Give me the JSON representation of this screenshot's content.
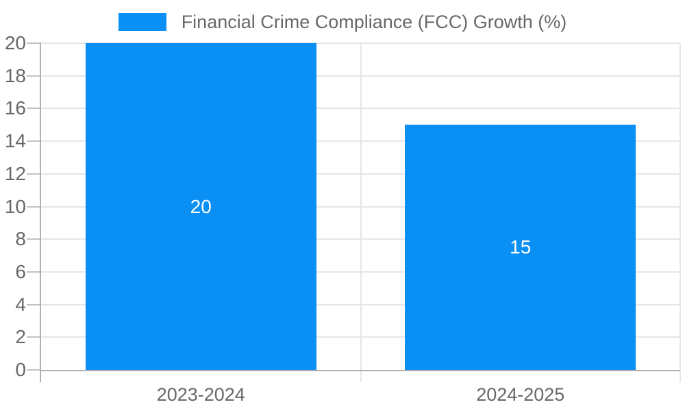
{
  "legend": {
    "label": "Financial Crime Compliance (FCC) Growth (%)"
  },
  "colors": {
    "bar": "#0a8ff5",
    "grid": "#e6e6e6",
    "axis": "#b0b0b0",
    "tick": "#c2c2c2",
    "text": "#686868",
    "value_label": "#ffffff",
    "background": "#ffffff"
  },
  "chart_data": {
    "type": "bar",
    "categories": [
      "2023-2024",
      "2024-2025"
    ],
    "series": [
      {
        "name": "Financial Crime Compliance (FCC) Growth (%)",
        "values": [
          20,
          15
        ]
      }
    ],
    "data_labels": [
      "20",
      "15"
    ],
    "xlabel": "",
    "ylabel": "",
    "ylim": [
      0,
      20
    ],
    "ytick_step": 2,
    "y_ticks": [
      0,
      2,
      4,
      6,
      8,
      10,
      12,
      14,
      16,
      18,
      20
    ],
    "grid": true,
    "legend_position": "top",
    "bar_color": "#0a8ff5",
    "value_label_color": "#ffffff"
  }
}
